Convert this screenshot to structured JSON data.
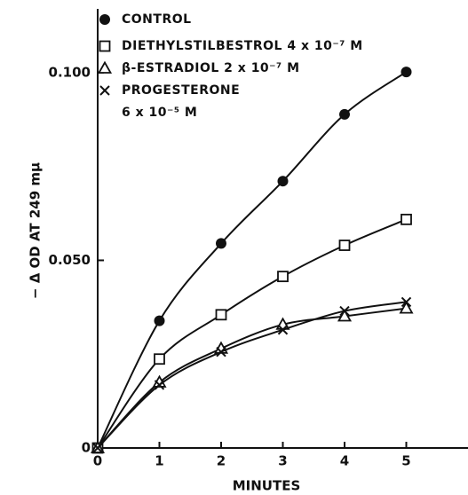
{
  "chart_data": {
    "type": "line",
    "x_label": "MINUTES",
    "y_label": "− Δ OD AT 249 mμ",
    "x": [
      0,
      1,
      2,
      3,
      4,
      5
    ],
    "series": [
      {
        "name": "CONTROL",
        "color": "#111111",
        "marker": "circle",
        "values": [
          0,
          0.0339,
          0.0545,
          0.0711,
          0.0889,
          0.1002
        ]
      },
      {
        "name": "DIETHYLSTILBESTROL 4 x 10⁻⁷ M",
        "color": "#111111",
        "marker": "square",
        "values": [
          0,
          0.0237,
          0.0355,
          0.0457,
          0.054,
          0.0609
        ]
      },
      {
        "name": "β-ESTRADIOL 2 x 10⁻⁷ M",
        "color": "#111111",
        "marker": "triangle",
        "values": [
          0,
          0.0175,
          0.0265,
          0.0329,
          0.0351,
          0.0372
        ]
      },
      {
        "name": "PROGESTERONE\n6 x 10⁻⁵ M",
        "color": "#111111",
        "marker": "x",
        "values": [
          0,
          0.0168,
          0.0256,
          0.0315,
          0.0365,
          0.0389
        ]
      }
    ],
    "xlim": [
      0,
      6
    ],
    "xticks": [
      0,
      1,
      2,
      3,
      4,
      5
    ],
    "ylim": [
      0,
      0.117
    ],
    "yticks": [
      0,
      {
        "value": 0.05,
        "label": "0.050"
      },
      {
        "value": 0.1,
        "label": "0.100"
      }
    ]
  }
}
